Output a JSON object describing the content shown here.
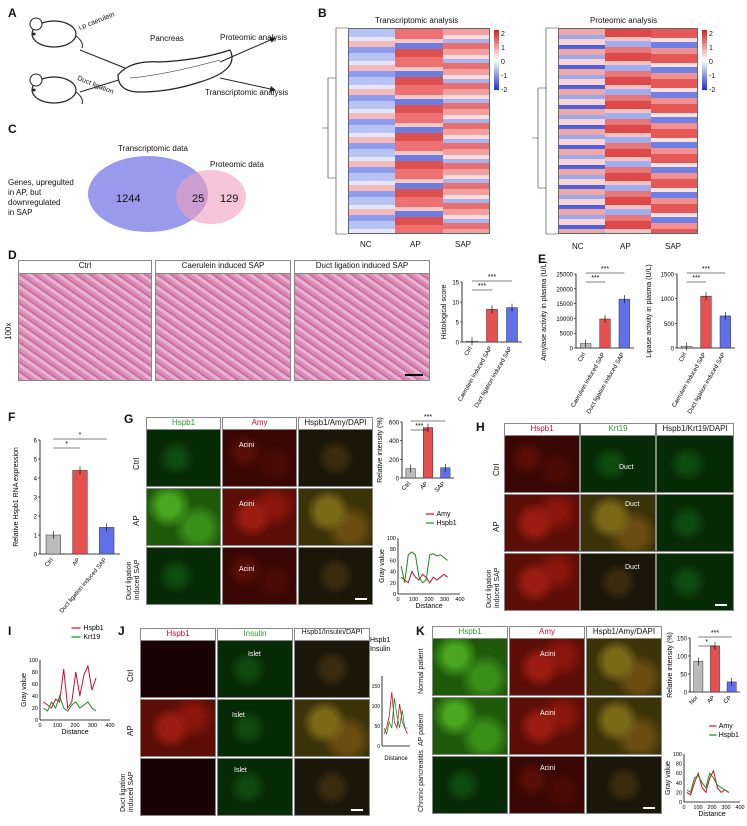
{
  "A": {
    "letter": "A",
    "ip_label": "i.p caerulein",
    "duct_label": "Duct ligation",
    "organ": "Pancreas",
    "out1": "Proteomic analysis",
    "out2": "Transcriptomic analysis"
  },
  "B": {
    "letter": "B",
    "title_left": "Transcriptomic analysis",
    "title_right": "Proteomic analysis",
    "groups": [
      "NC",
      "AP",
      "SAP"
    ],
    "cbar_ticks": [
      "2",
      "1",
      "0",
      "-1",
      "-2"
    ]
  },
  "C": {
    "letter": "C",
    "trans_label": "Transcriptomic data",
    "prot_label": "Proteomic data",
    "desc": [
      "Genes, upregulted",
      "in AP, but",
      "downregulated",
      "in SAP"
    ],
    "left_n": "1244",
    "mid_n": "25",
    "right_n": "129"
  },
  "D": {
    "letter": "D",
    "headers": [
      "Ctrl",
      "Caerulein induced SAP",
      "Duct ligation induced SAP"
    ],
    "mag": "100x",
    "chart_ylabel": "Histological score",
    "chart_ticks": [
      "0",
      "5",
      "10",
      "15"
    ],
    "cats": [
      "Ctrl",
      "Caerulein induced SAP",
      "Duct ligation induced SAP"
    ],
    "sig": [
      "***",
      "***"
    ]
  },
  "E": {
    "letter": "E",
    "amy_ylabel": "Amylase activity in plasma (U/L)",
    "amy_ticks": [
      "0",
      "5000",
      "10000",
      "15000",
      "20000",
      "25000"
    ],
    "lip_ylabel": "Lipase activity in plasma (U/L)",
    "lip_ticks": [
      "0",
      "500",
      "1000",
      "1500"
    ],
    "cats": [
      "Ctrl",
      "Caerulein induced SAP",
      "Duct ligation induced SAP"
    ],
    "sig": [
      "***",
      "***"
    ]
  },
  "F": {
    "letter": "F",
    "ylabel": "Relative Hspb1 RNA expression",
    "ticks": [
      "0",
      "1",
      "2",
      "3",
      "4",
      "5",
      "6"
    ],
    "cats": [
      "Ctrl",
      "AP",
      "Duct ligation induced SAP"
    ],
    "sig": [
      "*",
      "*"
    ]
  },
  "G": {
    "letter": "G",
    "headers": [
      "Hspb1",
      "Amy",
      "Hspb1/Amy/DAPI"
    ],
    "rows": [
      "Ctrl",
      "AP",
      "Duct ligation induced SAP"
    ],
    "acini": "Acini",
    "bar_ylabel": "Relative intensity (%)",
    "bar_ticks": [
      "0",
      "200",
      "400",
      "600"
    ],
    "bar_cats": [
      "Ctrl",
      "AP",
      "SAP"
    ],
    "sig": [
      "***",
      "***"
    ],
    "line_ylabel": "Gray value",
    "line_xlabel": "Distance",
    "line_yticks": [
      "0",
      "20",
      "40",
      "60",
      "80",
      "100"
    ],
    "line_xticks": [
      "0",
      "100",
      "200",
      "300",
      "400"
    ],
    "legend": [
      "Amy",
      "Hspb1"
    ]
  },
  "H": {
    "letter": "H",
    "headers": [
      "Hspb1",
      "Krt19",
      "Hspb1/Krt19/DAPI"
    ],
    "rows": [
      "Ctrl",
      "AP",
      "Duct ligation induced SAP"
    ],
    "duct": "Duct"
  },
  "I": {
    "letter": "I",
    "legend": [
      "Hspb1",
      "Krt19"
    ],
    "ylabel": "Gray value",
    "xlabel": "Distance",
    "yticks": [
      "0",
      "20",
      "40",
      "60",
      "80",
      "100"
    ],
    "xticks": [
      "0",
      "100",
      "200",
      "300",
      "400"
    ]
  },
  "J": {
    "letter": "J",
    "headers": [
      "Hspb1",
      "Insulin",
      "Hspb1/Insulin/DAPI"
    ],
    "rows": [
      "Ctrl",
      "AP",
      "Duct ligation induced SAP"
    ],
    "islet": "Islet",
    "legend": [
      "Hspb1",
      "Insulin"
    ],
    "ylabel": "Gray value",
    "xlabel": "Distance",
    "yticks": [
      "0",
      "50",
      "100",
      "150"
    ],
    "xticks": [
      "0",
      "400",
      "800",
      "1200"
    ]
  },
  "K": {
    "letter": "K",
    "headers": [
      "Hspb1",
      "Amy",
      "Hspb1/Amy/DAPI"
    ],
    "rows": [
      "Normal patient",
      "AP patient",
      "Chronic pancreatitis"
    ],
    "acini": "Acini",
    "bar_ylabel": "Relative intensity (%)",
    "bar_ticks": [
      "0",
      "50",
      "100",
      "150"
    ],
    "bar_cats": [
      "Nor",
      "AP",
      "CP"
    ],
    "sig": [
      "*",
      "***"
    ],
    "legend": [
      "Amy",
      "Hspb1"
    ],
    "line_ylabel": "Gray value",
    "line_xlabel": "Distance",
    "line_yticks": [
      "0",
      "20",
      "40",
      "60",
      "80",
      "100"
    ],
    "line_xticks": [
      "0",
      "100",
      "200",
      "300",
      "400"
    ]
  },
  "colors": {
    "red": "#c8102e",
    "green": "#1a8a1a",
    "blue": "#3333cc",
    "bar_red": "#e55050",
    "bar_blue": "#6070e8"
  },
  "chart_data": [
    {
      "panel": "D",
      "type": "bar",
      "categories": [
        "Ctrl",
        "Caerulein induced SAP",
        "Duct ligation induced SAP"
      ],
      "values": [
        0.2,
        8.2,
        8.6
      ],
      "ylabel": "Histological score",
      "ylim": [
        0,
        15
      ]
    },
    {
      "panel": "E-amylase",
      "type": "bar",
      "categories": [
        "Ctrl",
        "Caerulein induced SAP",
        "Duct ligation induced SAP"
      ],
      "values": [
        1500,
        9800,
        16500
      ],
      "ylabel": "Amylase activity in plasma (U/L)",
      "ylim": [
        0,
        25000
      ]
    },
    {
      "panel": "E-lipase",
      "type": "bar",
      "categories": [
        "Ctrl",
        "Caerulein induced SAP",
        "Duct ligation induced SAP"
      ],
      "values": [
        30,
        1050,
        650
      ],
      "ylabel": "Lipase activity in plasma (U/L)",
      "ylim": [
        0,
        1500
      ]
    },
    {
      "panel": "F",
      "type": "bar",
      "categories": [
        "Ctrl",
        "AP",
        "Duct ligation induced SAP"
      ],
      "values": [
        1.0,
        4.4,
        1.4
      ],
      "ylabel": "Relative Hspb1 RNA expression",
      "ylim": [
        0,
        6
      ]
    },
    {
      "panel": "G-bar",
      "type": "bar",
      "categories": [
        "Ctrl",
        "AP",
        "SAP"
      ],
      "values": [
        100,
        540,
        110
      ],
      "ylabel": "Relative intensity (%)",
      "ylim": [
        0,
        600
      ]
    },
    {
      "panel": "K-bar",
      "type": "bar",
      "categories": [
        "Nor",
        "AP",
        "CP"
      ],
      "values": [
        85,
        128,
        28
      ],
      "ylabel": "Relative intensity (%)",
      "ylim": [
        0,
        150
      ]
    }
  ]
}
